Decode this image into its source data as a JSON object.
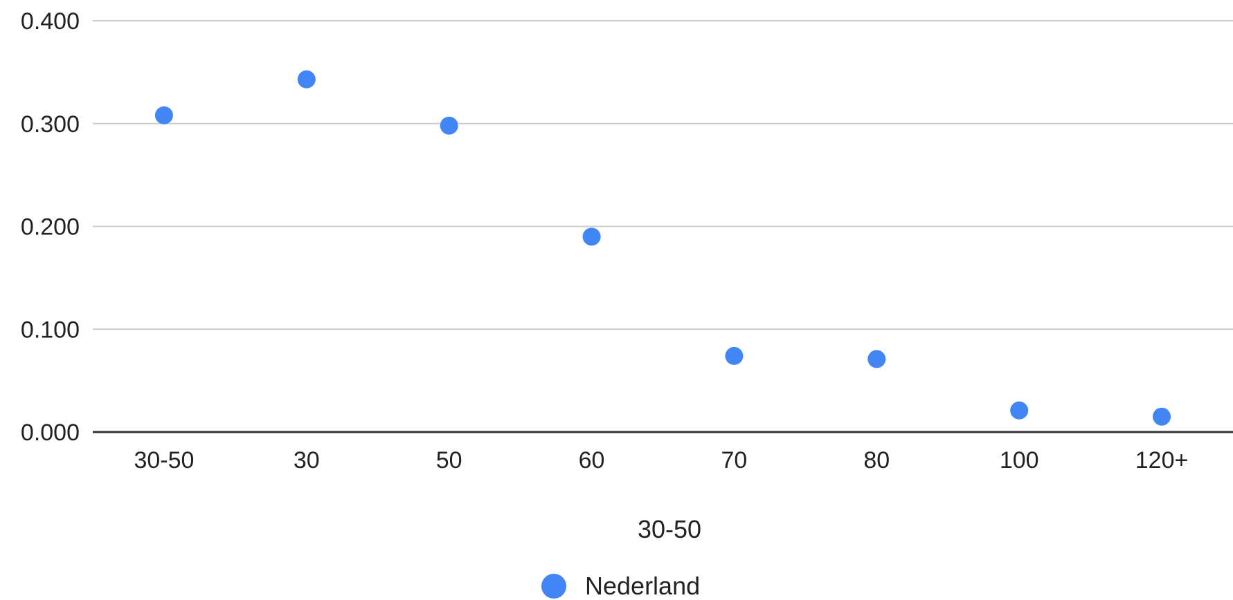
{
  "chart_data": {
    "type": "scatter",
    "categories": [
      "30-50",
      "30",
      "50",
      "60",
      "70",
      "80",
      "100",
      "120+"
    ],
    "series": [
      {
        "name": "Nederland",
        "values": [
          0.308,
          0.343,
          0.298,
          0.19,
          0.074,
          0.071,
          0.021,
          0.015
        ]
      }
    ],
    "xlabel": "30-50",
    "ylabel": "",
    "ylim": [
      0,
      0.4
    ],
    "yticks": [
      "0.000",
      "0.100",
      "0.200",
      "0.300",
      "0.400"
    ],
    "ytick_values": [
      0,
      0.1,
      0.2,
      0.3,
      0.4
    ],
    "grid": true,
    "legend_position": "bottom",
    "colors": {
      "series": "#4285f4",
      "grid": "#cccccc",
      "baseline": "#333333",
      "text": "#222222"
    }
  }
}
